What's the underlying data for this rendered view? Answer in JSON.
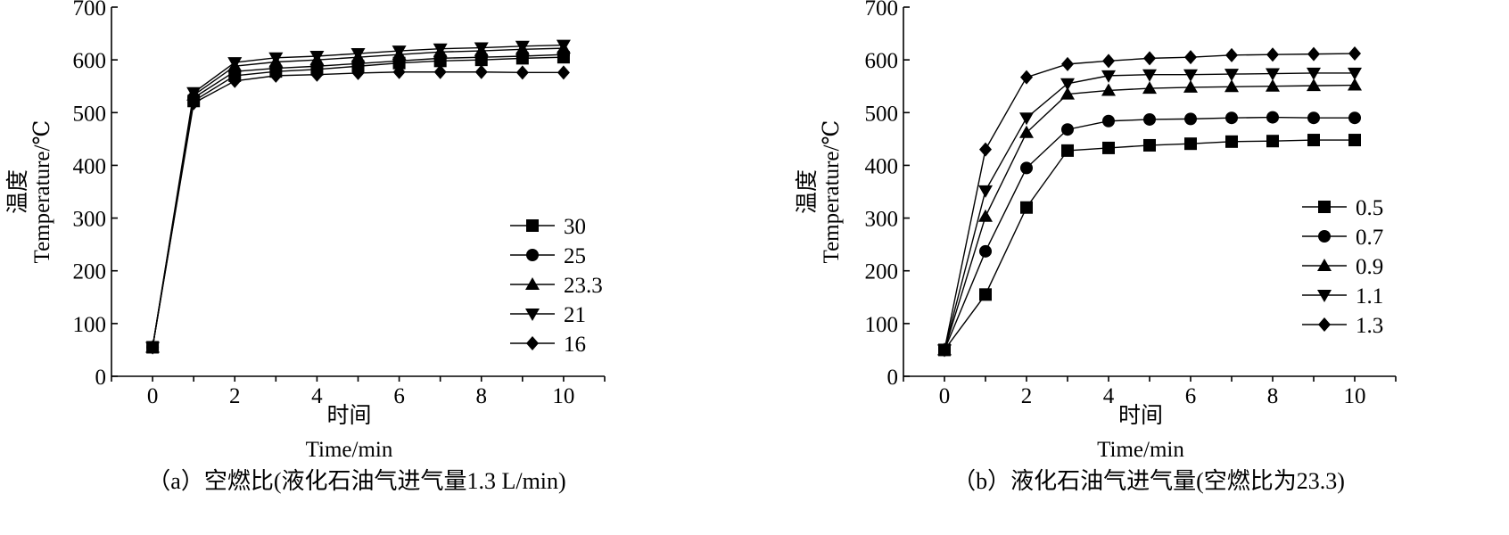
{
  "chart_data": [
    {
      "type": "line",
      "title": "",
      "caption": "（a）空燃比(液化石油气进气量1.3 L/min)",
      "ylabel_cn": "温度",
      "ylabel_en": "Temperature/℃",
      "xlabel_cn": "时间",
      "xlabel_en": "Time/min",
      "xlim": [
        -1,
        11
      ],
      "ylim": [
        0,
        700
      ],
      "xticks": [
        0,
        2,
        4,
        6,
        8,
        10
      ],
      "yticks": [
        0,
        100,
        200,
        300,
        400,
        500,
        600,
        700
      ],
      "legend_position": "right-middle",
      "x": [
        0,
        1,
        2,
        3,
        4,
        5,
        6,
        7,
        8,
        9,
        10
      ],
      "series": [
        {
          "name": "30",
          "marker": "square",
          "values": [
            55,
            522,
            570,
            578,
            582,
            588,
            594,
            598,
            600,
            603,
            605
          ]
        },
        {
          "name": "25",
          "marker": "circle",
          "values": [
            55,
            528,
            578,
            584,
            588,
            593,
            598,
            603,
            605,
            607,
            610
          ]
        },
        {
          "name": "23.3",
          "marker": "triangle-up",
          "values": [
            55,
            533,
            588,
            596,
            600,
            605,
            610,
            615,
            617,
            620,
            622
          ]
        },
        {
          "name": "21",
          "marker": "triangle-down",
          "values": [
            55,
            538,
            595,
            604,
            607,
            612,
            617,
            621,
            623,
            626,
            628
          ]
        },
        {
          "name": "16",
          "marker": "diamond",
          "values": [
            55,
            518,
            560,
            570,
            572,
            575,
            577,
            577,
            577,
            576,
            576
          ]
        }
      ]
    },
    {
      "type": "line",
      "title": "",
      "caption": "（b）液化石油气进气量(空燃比为23.3)",
      "ylabel_cn": "温度",
      "ylabel_en": "Temperature/℃",
      "xlabel_cn": "时间",
      "xlabel_en": "Time/min",
      "xlim": [
        -1,
        11
      ],
      "ylim": [
        0,
        700
      ],
      "xticks": [
        0,
        2,
        4,
        6,
        8,
        10
      ],
      "yticks": [
        0,
        100,
        200,
        300,
        400,
        500,
        600,
        700
      ],
      "legend_position": "right-middle",
      "x": [
        0,
        1,
        2,
        3,
        4,
        5,
        6,
        7,
        8,
        9,
        10
      ],
      "series": [
        {
          "name": "0.5",
          "marker": "square",
          "values": [
            50,
            155,
            320,
            428,
            433,
            438,
            441,
            445,
            446,
            448,
            448
          ]
        },
        {
          "name": "0.7",
          "marker": "circle",
          "values": [
            50,
            237,
            395,
            468,
            484,
            487,
            488,
            490,
            491,
            490,
            490
          ]
        },
        {
          "name": "0.9",
          "marker": "triangle-up",
          "values": [
            50,
            303,
            462,
            535,
            542,
            546,
            548,
            549,
            550,
            551,
            552
          ]
        },
        {
          "name": "1.1",
          "marker": "triangle-down",
          "values": [
            50,
            352,
            490,
            555,
            570,
            572,
            572,
            573,
            574,
            575,
            575
          ]
        },
        {
          "name": "1.3",
          "marker": "diamond",
          "values": [
            50,
            430,
            567,
            592,
            598,
            603,
            605,
            609,
            610,
            611,
            612
          ]
        }
      ]
    }
  ]
}
